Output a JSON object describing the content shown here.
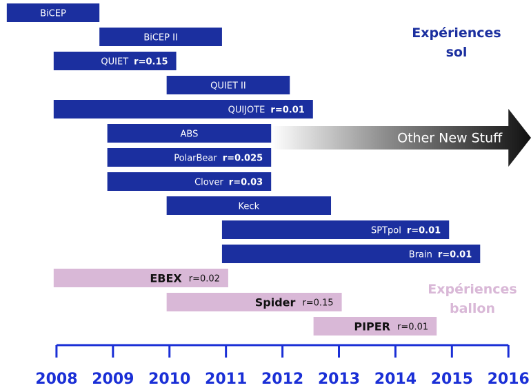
{
  "chart_data": {
    "type": "gantt",
    "xlim": [
      2007,
      2016.4
    ],
    "xticks": [
      2008,
      2009,
      2010,
      2011,
      2012,
      2013,
      2014,
      2015,
      2016
    ],
    "axis_color": "#1a2fd6",
    "series": [
      {
        "name": "Expériences sol",
        "color": "#1b2f9f",
        "text_color": "#ffffff",
        "tasks": [
          {
            "name": "BiCEP",
            "start": 2007.12,
            "end": 2008.76
          },
          {
            "name": "BiCEP II",
            "start": 2008.76,
            "end": 2010.93
          },
          {
            "name": "QUIET",
            "r": "r=0.15",
            "start": 2007.95,
            "end": 2010.12
          },
          {
            "name": "QUIET II",
            "start": 2009.95,
            "end": 2012.13
          },
          {
            "name": "QUIJOTE",
            "r": "r=0.01",
            "start": 2007.95,
            "end": 2012.54
          },
          {
            "name": "ABS",
            "start": 2008.9,
            "end": 2011.8
          },
          {
            "name": "PolarBear",
            "r": "r=0.025",
            "start": 2008.9,
            "end": 2011.8
          },
          {
            "name": "Clover",
            "r": "r=0.03",
            "start": 2008.9,
            "end": 2011.8
          },
          {
            "name": "Keck",
            "start": 2009.95,
            "end": 2012.86
          },
          {
            "name": "SPTpol",
            "r": "r=0.01",
            "start": 2010.93,
            "end": 2014.95
          },
          {
            "name": "Brain",
            "r": "r=0.01",
            "start": 2010.93,
            "end": 2015.5
          }
        ]
      },
      {
        "name": "Expériences ballon",
        "color": "#d9b8d7",
        "text_color": "#111111",
        "tasks": [
          {
            "name": "EBEX",
            "r": "r=0.02",
            "start": 2007.95,
            "end": 2011.04
          },
          {
            "name": "Spider",
            "r": "r=0.15",
            "start": 2009.95,
            "end": 2013.05
          },
          {
            "name": "PIPER",
            "r": "r=0.01",
            "start": 2012.55,
            "end": 2014.73
          }
        ]
      }
    ],
    "arrow": {
      "label": "Other New Stuff",
      "start": 2011.8
    }
  }
}
